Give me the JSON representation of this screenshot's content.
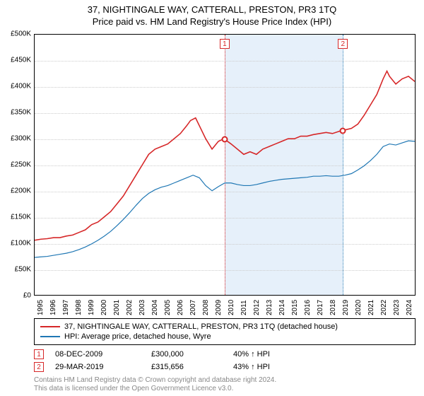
{
  "title_line1": "37, NIGHTINGALE WAY, CATTERALL, PRESTON, PR3 1TQ",
  "title_line2": "Price paid vs. HM Land Registry's House Price Index (HPI)",
  "chart": {
    "type": "line",
    "background_color": "#ffffff",
    "grid_color": "#cccccc",
    "border_color": "#000000",
    "x_years": [
      1995,
      1996,
      1997,
      1998,
      1999,
      2000,
      2001,
      2002,
      2003,
      2004,
      2005,
      2006,
      2007,
      2008,
      2009,
      2010,
      2011,
      2012,
      2013,
      2014,
      2015,
      2016,
      2017,
      2018,
      2019,
      2020,
      2021,
      2022,
      2023,
      2024
    ],
    "x_min": 1995,
    "x_max": 2025,
    "ylim": [
      0,
      500000
    ],
    "ytick_step": 50000,
    "ytick_labels": [
      "£0",
      "£50K",
      "£100K",
      "£150K",
      "£200K",
      "£250K",
      "£300K",
      "£350K",
      "£400K",
      "£450K",
      "£500K"
    ],
    "series": [
      {
        "name": "price_paid",
        "color": "#d62728",
        "width": 1.6,
        "data": [
          [
            1995.0,
            105000
          ],
          [
            1995.5,
            107000
          ],
          [
            1996.0,
            108000
          ],
          [
            1996.5,
            110000
          ],
          [
            1997.0,
            110000
          ],
          [
            1997.5,
            113000
          ],
          [
            1998.0,
            115000
          ],
          [
            1998.5,
            120000
          ],
          [
            1999.0,
            125000
          ],
          [
            1999.5,
            135000
          ],
          [
            2000.0,
            140000
          ],
          [
            2000.5,
            150000
          ],
          [
            2001.0,
            160000
          ],
          [
            2001.5,
            175000
          ],
          [
            2002.0,
            190000
          ],
          [
            2002.5,
            210000
          ],
          [
            2003.0,
            230000
          ],
          [
            2003.5,
            250000
          ],
          [
            2004.0,
            270000
          ],
          [
            2004.5,
            280000
          ],
          [
            2005.0,
            285000
          ],
          [
            2005.5,
            290000
          ],
          [
            2006.0,
            300000
          ],
          [
            2006.5,
            310000
          ],
          [
            2007.0,
            325000
          ],
          [
            2007.3,
            335000
          ],
          [
            2007.7,
            340000
          ],
          [
            2008.0,
            325000
          ],
          [
            2008.5,
            300000
          ],
          [
            2009.0,
            280000
          ],
          [
            2009.5,
            295000
          ],
          [
            2009.94,
            300000
          ],
          [
            2010.5,
            290000
          ],
          [
            2011.0,
            280000
          ],
          [
            2011.5,
            270000
          ],
          [
            2012.0,
            275000
          ],
          [
            2012.5,
            270000
          ],
          [
            2013.0,
            280000
          ],
          [
            2013.5,
            285000
          ],
          [
            2014.0,
            290000
          ],
          [
            2014.5,
            295000
          ],
          [
            2015.0,
            300000
          ],
          [
            2015.5,
            300000
          ],
          [
            2016.0,
            305000
          ],
          [
            2016.5,
            305000
          ],
          [
            2017.0,
            308000
          ],
          [
            2017.5,
            310000
          ],
          [
            2018.0,
            312000
          ],
          [
            2018.5,
            310000
          ],
          [
            2019.0,
            314000
          ],
          [
            2019.24,
            315656
          ],
          [
            2019.5,
            317000
          ],
          [
            2020.0,
            320000
          ],
          [
            2020.5,
            328000
          ],
          [
            2021.0,
            345000
          ],
          [
            2021.5,
            365000
          ],
          [
            2022.0,
            385000
          ],
          [
            2022.5,
            415000
          ],
          [
            2022.8,
            430000
          ],
          [
            2023.0,
            420000
          ],
          [
            2023.5,
            405000
          ],
          [
            2024.0,
            415000
          ],
          [
            2024.5,
            420000
          ],
          [
            2025.0,
            410000
          ]
        ]
      },
      {
        "name": "hpi",
        "color": "#1f77b4",
        "width": 1.2,
        "data": [
          [
            1995.0,
            72000
          ],
          [
            1995.5,
            73000
          ],
          [
            1996.0,
            74000
          ],
          [
            1996.5,
            76000
          ],
          [
            1997.0,
            78000
          ],
          [
            1997.5,
            80000
          ],
          [
            1998.0,
            83000
          ],
          [
            1998.5,
            87000
          ],
          [
            1999.0,
            92000
          ],
          [
            1999.5,
            98000
          ],
          [
            2000.0,
            105000
          ],
          [
            2000.5,
            113000
          ],
          [
            2001.0,
            122000
          ],
          [
            2001.5,
            133000
          ],
          [
            2002.0,
            145000
          ],
          [
            2002.5,
            158000
          ],
          [
            2003.0,
            172000
          ],
          [
            2003.5,
            185000
          ],
          [
            2004.0,
            195000
          ],
          [
            2004.5,
            202000
          ],
          [
            2005.0,
            207000
          ],
          [
            2005.5,
            210000
          ],
          [
            2006.0,
            215000
          ],
          [
            2006.5,
            220000
          ],
          [
            2007.0,
            225000
          ],
          [
            2007.5,
            230000
          ],
          [
            2008.0,
            225000
          ],
          [
            2008.5,
            210000
          ],
          [
            2009.0,
            200000
          ],
          [
            2009.5,
            208000
          ],
          [
            2010.0,
            215000
          ],
          [
            2010.5,
            215000
          ],
          [
            2011.0,
            212000
          ],
          [
            2011.5,
            210000
          ],
          [
            2012.0,
            210000
          ],
          [
            2012.5,
            212000
          ],
          [
            2013.0,
            215000
          ],
          [
            2013.5,
            218000
          ],
          [
            2014.0,
            220000
          ],
          [
            2014.5,
            222000
          ],
          [
            2015.0,
            223000
          ],
          [
            2015.5,
            224000
          ],
          [
            2016.0,
            225000
          ],
          [
            2016.5,
            226000
          ],
          [
            2017.0,
            228000
          ],
          [
            2017.5,
            228000
          ],
          [
            2018.0,
            229000
          ],
          [
            2018.5,
            228000
          ],
          [
            2019.0,
            228000
          ],
          [
            2019.5,
            230000
          ],
          [
            2020.0,
            233000
          ],
          [
            2020.5,
            240000
          ],
          [
            2021.0,
            248000
          ],
          [
            2021.5,
            258000
          ],
          [
            2022.0,
            270000
          ],
          [
            2022.5,
            285000
          ],
          [
            2023.0,
            290000
          ],
          [
            2023.5,
            288000
          ],
          [
            2024.0,
            292000
          ],
          [
            2024.5,
            296000
          ],
          [
            2025.0,
            295000
          ]
        ]
      }
    ],
    "shaded_band": {
      "x_from": 2009.94,
      "x_to": 2019.24,
      "color": "#e6f0fa"
    },
    "sale_vlines": [
      {
        "x": 2009.94,
        "color": "#d62728"
      },
      {
        "x": 2019.24,
        "color": "#1f77b4"
      }
    ],
    "sale_points": [
      {
        "idx": "1",
        "x": 2009.94,
        "y": 300000
      },
      {
        "idx": "2",
        "x": 2019.24,
        "y": 315656
      }
    ]
  },
  "legend": {
    "items": [
      {
        "color": "#d62728",
        "label": "37, NIGHTINGALE WAY, CATTERALL, PRESTON, PR3 1TQ (detached house)"
      },
      {
        "color": "#1f77b4",
        "label": "HPI: Average price, detached house, Wyre"
      }
    ]
  },
  "sales": [
    {
      "idx": "1",
      "date": "08-DEC-2009",
      "price": "£300,000",
      "diff": "40% ↑ HPI"
    },
    {
      "idx": "2",
      "date": "29-MAR-2019",
      "price": "£315,656",
      "diff": "43% ↑ HPI"
    }
  ],
  "footnote_line1": "Contains HM Land Registry data © Crown copyright and database right 2024.",
  "footnote_line2": "This data is licensed under the Open Government Licence v3.0."
}
